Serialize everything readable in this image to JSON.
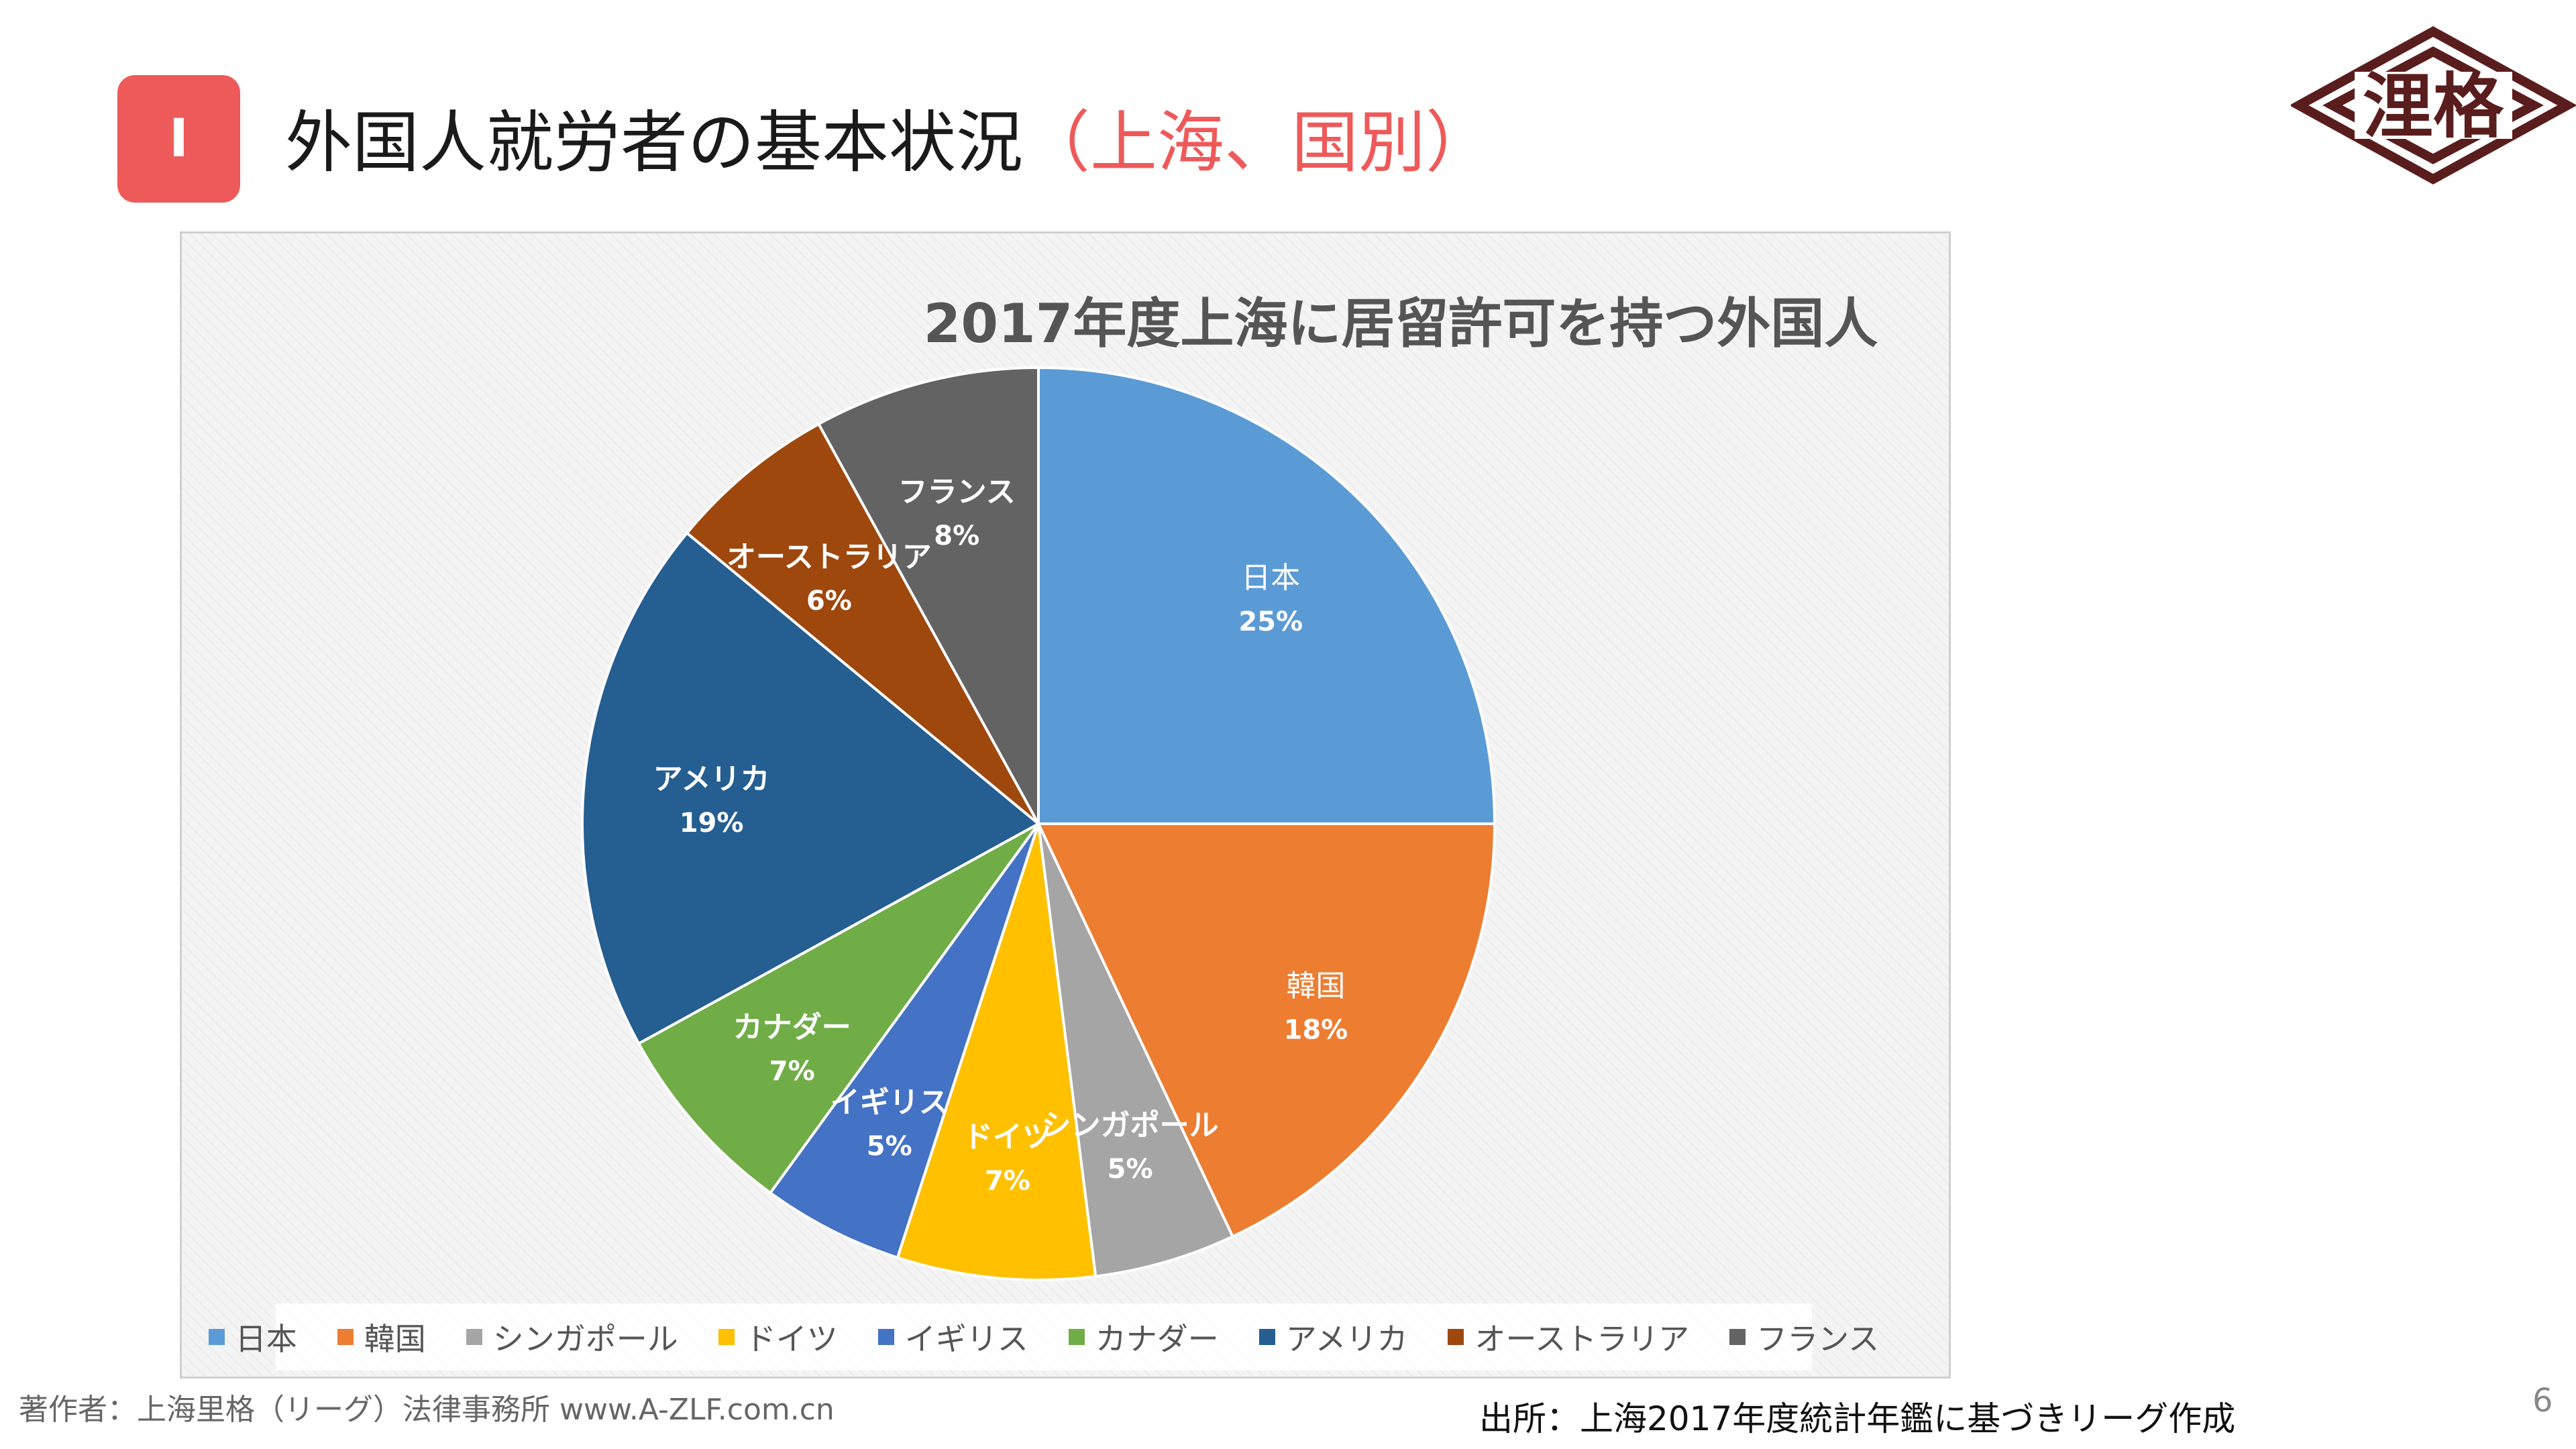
{
  "header": {
    "badge": "I",
    "title_main": "外国人就労者の基本状況",
    "title_accent": "（上海、国別）"
  },
  "logo": {
    "text_top": "浬",
    "text_bottom": "格"
  },
  "chart_data": {
    "type": "pie",
    "title": "2017年度上海に居留許可を持つ外国人",
    "categories": [
      "日本",
      "韓国",
      "シンガポール",
      "ドイツ",
      "イギリス",
      "カナダー",
      "アメリカ",
      "オーストラリア",
      "フランス"
    ],
    "values": [
      25,
      18,
      5,
      7,
      5,
      7,
      19,
      6,
      8
    ],
    "value_labels": [
      "25%",
      "18%",
      "5%",
      "7%",
      "5%",
      "7%",
      "19%",
      "6%",
      "8%"
    ],
    "colors": [
      "#5b9bd5",
      "#ed7d31",
      "#a5a5a5",
      "#ffc000",
      "#4472c4",
      "#70ad47",
      "#255e91",
      "#9e480e",
      "#636363"
    ],
    "start_angle_deg": 0,
    "direction": "clockwise",
    "legend_position": "bottom"
  },
  "footer": {
    "author": "著作者：上海里格（リーグ）法律事務所 www.A-ZLF.com.cn",
    "source": "出所：上海2017年度統計年鑑に基づきリーグ作成",
    "page_number": "6"
  }
}
